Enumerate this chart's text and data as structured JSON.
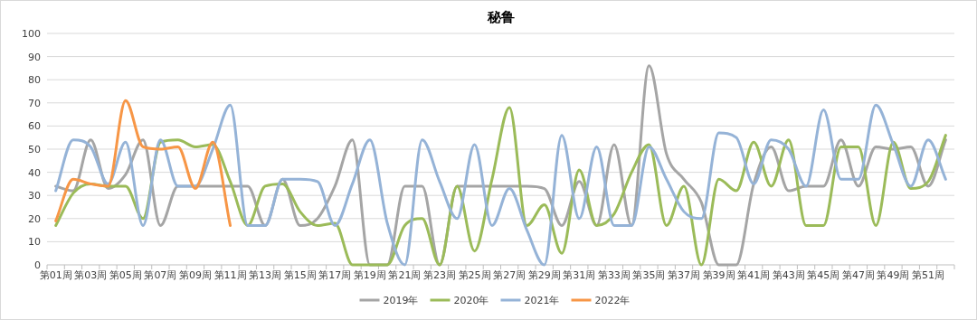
{
  "chart_data": {
    "type": "line",
    "title": "秘鲁",
    "categories": [
      "第01周",
      null,
      "第03周",
      null,
      "第05周",
      null,
      "第07周",
      null,
      "第09周",
      null,
      "第11周",
      null,
      "第13周",
      null,
      "第15周",
      null,
      "第17周",
      null,
      "第19周",
      null,
      "第21周",
      null,
      "第23周",
      null,
      "第25周",
      null,
      "第27周",
      null,
      "第29周",
      null,
      "第31周",
      null,
      "第33周",
      null,
      "第35周",
      null,
      "第37周",
      null,
      "第39周",
      null,
      "第41周",
      null,
      "第43周",
      null,
      "第45周",
      null,
      "第47周",
      null,
      "第49周",
      null,
      "第51周",
      null
    ],
    "series": [
      {
        "name": "2019年",
        "color": "#a5a5a5",
        "values": [
          34,
          32,
          54,
          33,
          39,
          54,
          17,
          34,
          34,
          34,
          34,
          34,
          17,
          37,
          17,
          20,
          34,
          54,
          0,
          0,
          34,
          34,
          0,
          34,
          34,
          34,
          34,
          34,
          33,
          17,
          36,
          17,
          52,
          17,
          86,
          48,
          37,
          27,
          0,
          0,
          35,
          51,
          32,
          34,
          34,
          54,
          34,
          51,
          50,
          51,
          34,
          54
        ]
      },
      {
        "name": "2020年",
        "color": "#9bbb59",
        "values": [
          17,
          31,
          35,
          34,
          34,
          20,
          53,
          54,
          51,
          52,
          36,
          17,
          34,
          35,
          23,
          17,
          18,
          0,
          0,
          0,
          17,
          20,
          0,
          34,
          6,
          37,
          68,
          17,
          26,
          5,
          41,
          17,
          22,
          40,
          52,
          17,
          34,
          0,
          37,
          32,
          53,
          34,
          54,
          17,
          17,
          51,
          51,
          17,
          53,
          33,
          36,
          56
        ]
      },
      {
        "name": "2021年",
        "color": "#95b3d7",
        "values": [
          32,
          54,
          51,
          35,
          53,
          17,
          54,
          34,
          34,
          50,
          69,
          17,
          17,
          37,
          37,
          36,
          17,
          35,
          54,
          18,
          0,
          54,
          36,
          20,
          52,
          17,
          33,
          15,
          0,
          56,
          20,
          51,
          17,
          17,
          51,
          37,
          23,
          20,
          57,
          55,
          35,
          54,
          50,
          34,
          67,
          37,
          37,
          69,
          52,
          34,
          54,
          37
        ]
      },
      {
        "name": "2022年",
        "color": "#f79646",
        "values": [
          19,
          37,
          35,
          34,
          71,
          51,
          50,
          51,
          33,
          53,
          17,
          null,
          null,
          null,
          null,
          null,
          null,
          null,
          null,
          null,
          null,
          null,
          null,
          null,
          null,
          null,
          null,
          null,
          null,
          null,
          null,
          null,
          null,
          null,
          null,
          null,
          null,
          null,
          null,
          null,
          null,
          null,
          null,
          null,
          null,
          null,
          null,
          null,
          null,
          null,
          null,
          null
        ]
      }
    ],
    "ylim": [
      0,
      100
    ],
    "yticks": [
      0,
      10,
      20,
      30,
      40,
      50,
      60,
      70,
      80,
      90,
      100
    ],
    "grid": "y",
    "legend": "bottom",
    "marker": "none",
    "line_style": "solid"
  }
}
